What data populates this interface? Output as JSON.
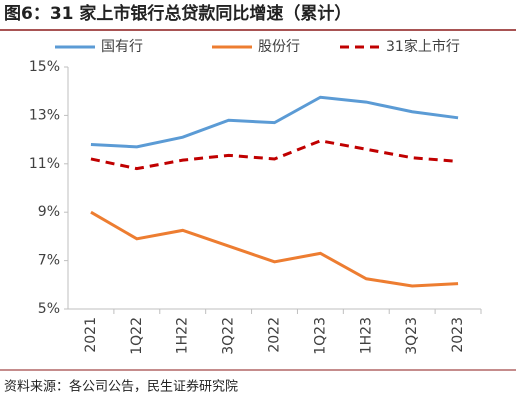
{
  "chart_data": {
    "type": "line",
    "title": "图6：31 家上市银行总贷款同比增速（累计）",
    "source": "资料来源：各公司公告，民生证券研究院",
    "categories": [
      "2021",
      "1Q22",
      "1H22",
      "3Q22",
      "2022",
      "1Q23",
      "1H23",
      "3Q23",
      "2023"
    ],
    "series": [
      {
        "name": "国有行",
        "color": "#5b9bd5",
        "dash": false,
        "values": [
          11.8,
          11.7,
          12.1,
          12.8,
          12.7,
          13.75,
          13.55,
          13.15,
          12.9
        ]
      },
      {
        "name": "股份行",
        "color": "#ed7d31",
        "dash": false,
        "values": [
          9.0,
          7.9,
          8.25,
          7.6,
          6.95,
          7.3,
          6.25,
          5.95,
          6.05
        ]
      },
      {
        "name": "31家上市行",
        "color": "#c00000",
        "dash": true,
        "values": [
          11.2,
          10.8,
          11.15,
          11.35,
          11.2,
          11.95,
          11.6,
          11.25,
          11.1
        ]
      }
    ],
    "ylim": [
      5,
      15
    ],
    "yticks": [
      {
        "value": 5,
        "label": "5%"
      },
      {
        "value": 7,
        "label": "7%"
      },
      {
        "value": 9,
        "label": "9%"
      },
      {
        "value": 11,
        "label": "11%"
      },
      {
        "value": 13,
        "label": "13%"
      },
      {
        "value": 15,
        "label": "15%"
      }
    ],
    "grid": false
  }
}
